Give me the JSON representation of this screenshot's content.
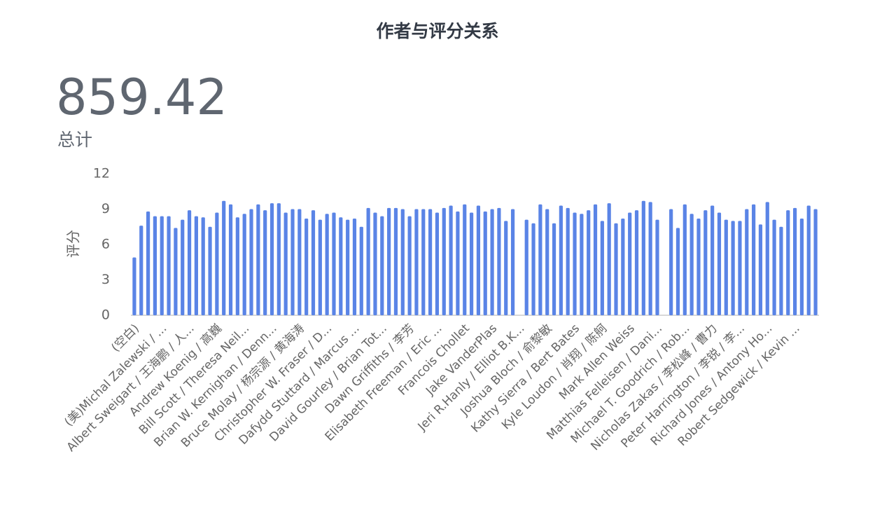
{
  "summary": {
    "value": 859.42,
    "label": "总计"
  },
  "chart_data": {
    "type": "bar",
    "title": "作者与评分关系",
    "y_label": "评分",
    "color": "#5a84e6",
    "ylim": [
      0,
      12
    ],
    "yticks": [
      0,
      3,
      6,
      9,
      12
    ],
    "grid": false,
    "categories": [
      "(空白)",
      null,
      null,
      null,
      "(美)Michal Zalewski / ...",
      null,
      null,
      null,
      "Albert Sweigart / 王海鹏 / 人...",
      null,
      null,
      null,
      "Andrew Koenig / 高巍",
      null,
      null,
      null,
      "Bill Scott / Theresa Neil...",
      null,
      null,
      null,
      "Brian W. Kernighan / Denn...",
      null,
      null,
      null,
      "Bruce Molay / 杨宗源 / 黄海涛",
      null,
      null,
      null,
      "Christopher W. Fraser / D...",
      null,
      null,
      null,
      "Dafydd Stuttard / Marcus ...",
      null,
      null,
      null,
      "David Gourley / Brian Tot...",
      null,
      null,
      null,
      "Dawn Griffiths / 李芳",
      null,
      null,
      null,
      "Elisabeth Freeman / Eric ...",
      null,
      null,
      null,
      "Francois Chollet",
      null,
      null,
      null,
      "Jake VanderPlas",
      null,
      null,
      null,
      "Jeri R.Hanly / Elliot B.K...",
      null,
      null,
      null,
      "Joshua Bloch / 俞黎敏",
      null,
      null,
      null,
      "Kathy Sierra / Bert Bates",
      null,
      null,
      null,
      "Kyle Loudon / 肖翔 / 陈舸",
      null,
      null,
      null,
      "Mark Allen Weiss",
      null,
      null,
      null,
      "Matthias Felleisen / Dani...",
      null,
      null,
      null,
      "Michael T. Goodrich / Rob...",
      null,
      null,
      null,
      "Nicholas Zakas / 李松峰 / 曹力",
      null,
      null,
      null,
      "Peter Harrington / 李锐 / 李...",
      null,
      null,
      null,
      "Richard Jones / Antony Ho...",
      null,
      null,
      null,
      "Robert Sedgewick / Kevin ...",
      null,
      null,
      null
    ],
    "values": [
      4.9,
      7.6,
      8.8,
      8.4,
      8.4,
      8.4,
      7.4,
      8.1,
      8.9,
      8.4,
      8.3,
      7.5,
      8.7,
      9.7,
      9.4,
      8.3,
      8.6,
      9.0,
      9.4,
      8.9,
      9.5,
      9.5,
      8.7,
      9.0,
      9.0,
      8.2,
      8.9,
      8.1,
      8.6,
      8.7,
      8.3,
      8.1,
      8.2,
      7.5,
      9.1,
      8.7,
      8.4,
      9.1,
      9.1,
      9.0,
      8.4,
      9.0,
      9.0,
      9.0,
      8.7,
      9.1,
      9.3,
      8.8,
      9.4,
      8.7,
      9.3,
      8.8,
      9.0,
      9.1,
      8.0,
      9.0,
      null,
      8.1,
      7.8,
      9.4,
      9.0,
      7.8,
      9.3,
      9.1,
      8.7,
      8.6,
      8.9,
      9.4,
      8.0,
      9.5,
      7.8,
      8.2,
      8.7,
      8.9,
      9.7,
      9.6,
      8.1,
      null,
      9.0,
      7.4,
      9.4,
      8.6,
      8.2,
      8.9,
      9.3,
      8.7,
      8.1,
      8.0,
      8.0,
      9.0,
      9.4,
      7.7,
      9.6,
      8.1,
      7.5,
      8.9,
      9.1,
      8.2,
      9.3,
      9.0
    ]
  }
}
